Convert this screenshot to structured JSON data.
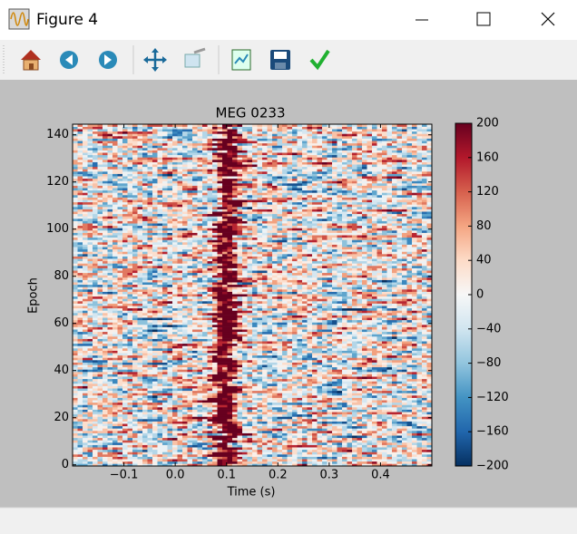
{
  "window": {
    "title": "Figure 4"
  },
  "chart_data": {
    "type": "image",
    "title": "MEG 0233",
    "xlabel": "Time (s)",
    "ylabel": "Epoch",
    "xlim": [
      -0.2,
      0.5
    ],
    "xticks": [
      {
        "value": -0.1,
        "label": "−0.1"
      },
      {
        "value": 0,
        "label": "0.0"
      },
      0.1,
      0.2,
      0.3,
      0.4
    ],
    "ylim": [
      -0.5,
      144.5
    ],
    "yticks": [
      0,
      20,
      40,
      60,
      80,
      100,
      120,
      140
    ],
    "colormap": "RdBu_r",
    "clim": [
      -200,
      200
    ],
    "colorbar_ticks": [
      {
        "value": -200,
        "label": "−200"
      },
      {
        "value": -160,
        "label": "−160"
      },
      {
        "value": -120,
        "label": "−120"
      },
      {
        "value": -80,
        "label": "−80"
      },
      {
        "value": -40,
        "label": "−40"
      },
      0,
      40,
      80,
      120,
      160,
      200
    ]
  }
}
